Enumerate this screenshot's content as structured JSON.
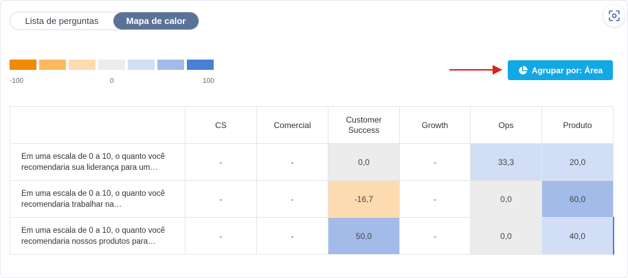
{
  "view_toggle": {
    "options": [
      "Lista de perguntas",
      "Mapa de calor"
    ],
    "active": "Mapa de calor"
  },
  "legend": {
    "colors": [
      "#f08a00",
      "#fdb85f",
      "#fddbb0",
      "#ececec",
      "#d1def5",
      "#a3bbe9",
      "#4a7fd6"
    ],
    "min_label": "-100",
    "mid_label": "0",
    "max_label": "100"
  },
  "group_button": {
    "label": "Agrupar por: Área",
    "icon": "pie-chart-icon"
  },
  "corner_button": {
    "icon": "focus-scan-icon"
  },
  "table": {
    "columns": [
      "",
      "CS",
      "Comercial",
      "Customer Success",
      "Growth",
      "Ops",
      "Produto"
    ],
    "rows": [
      {
        "question": "Em uma escala de 0 a 10, o quanto você recomendaria sua liderança para um…",
        "values": [
          "-",
          "-",
          "0,0",
          "-",
          "33,3",
          "20,0"
        ]
      },
      {
        "question": "Em uma escala de 0 a 10, o quanto você recomendaria trabalhar na…",
        "values": [
          "-",
          "-",
          "-16,7",
          "-",
          "0,0",
          "60,0"
        ]
      },
      {
        "question": "Em uma escala de 0 a 10, o quanto você recomendaria nossos produtos para…",
        "values": [
          "-",
          "-",
          "50,0",
          "-",
          "0,0",
          "40,0"
        ]
      }
    ]
  }
}
